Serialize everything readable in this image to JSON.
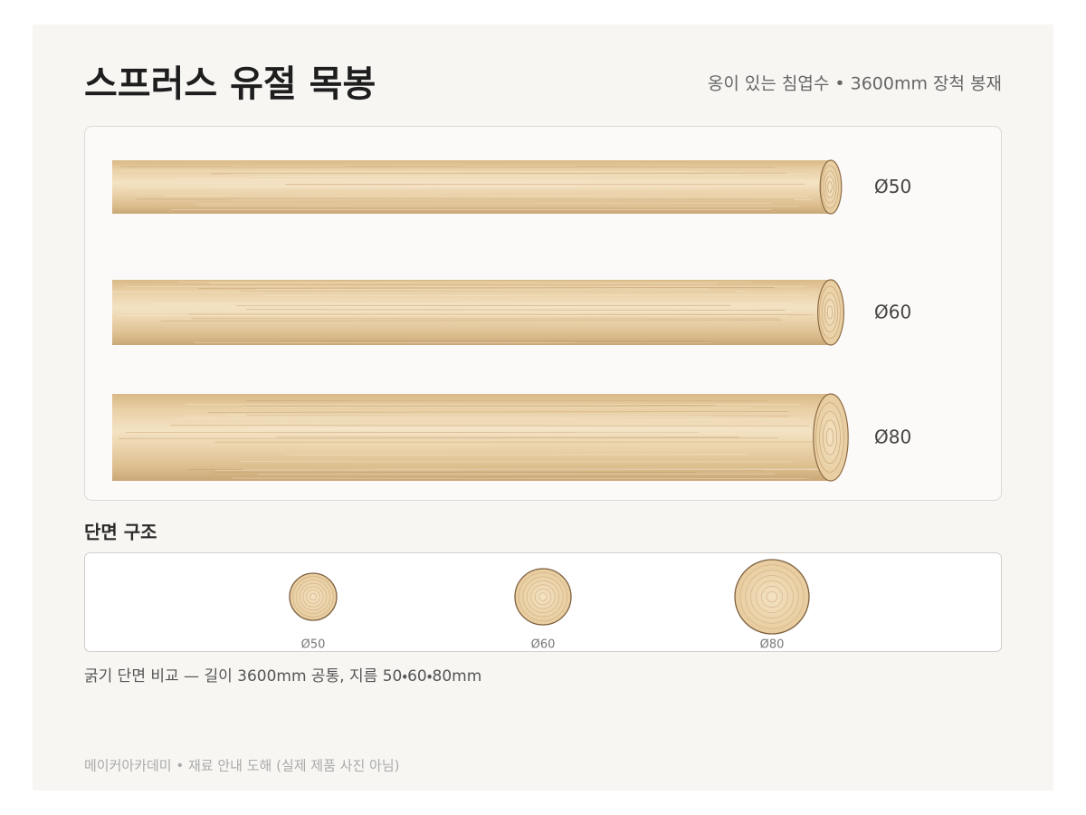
{
  "header": {
    "title": "스프러스 유절 목봉",
    "subtitle": "옹이 있는 침엽수 • 3600mm 장척 봉재"
  },
  "rods": [
    {
      "label": "Ø50"
    },
    {
      "label": "Ø60"
    },
    {
      "label": "Ø80"
    }
  ],
  "cross_section": {
    "heading": "단면 구조",
    "labels": [
      "Ø50",
      "Ø60",
      "Ø80"
    ]
  },
  "caption": "굵기 단면 비교 — 길이 3600mm 공통, 지름 50・60・80mm",
  "footer": "메이커아카데미 • 재료 안내 도해 (실제 제품 사진 아님)"
}
